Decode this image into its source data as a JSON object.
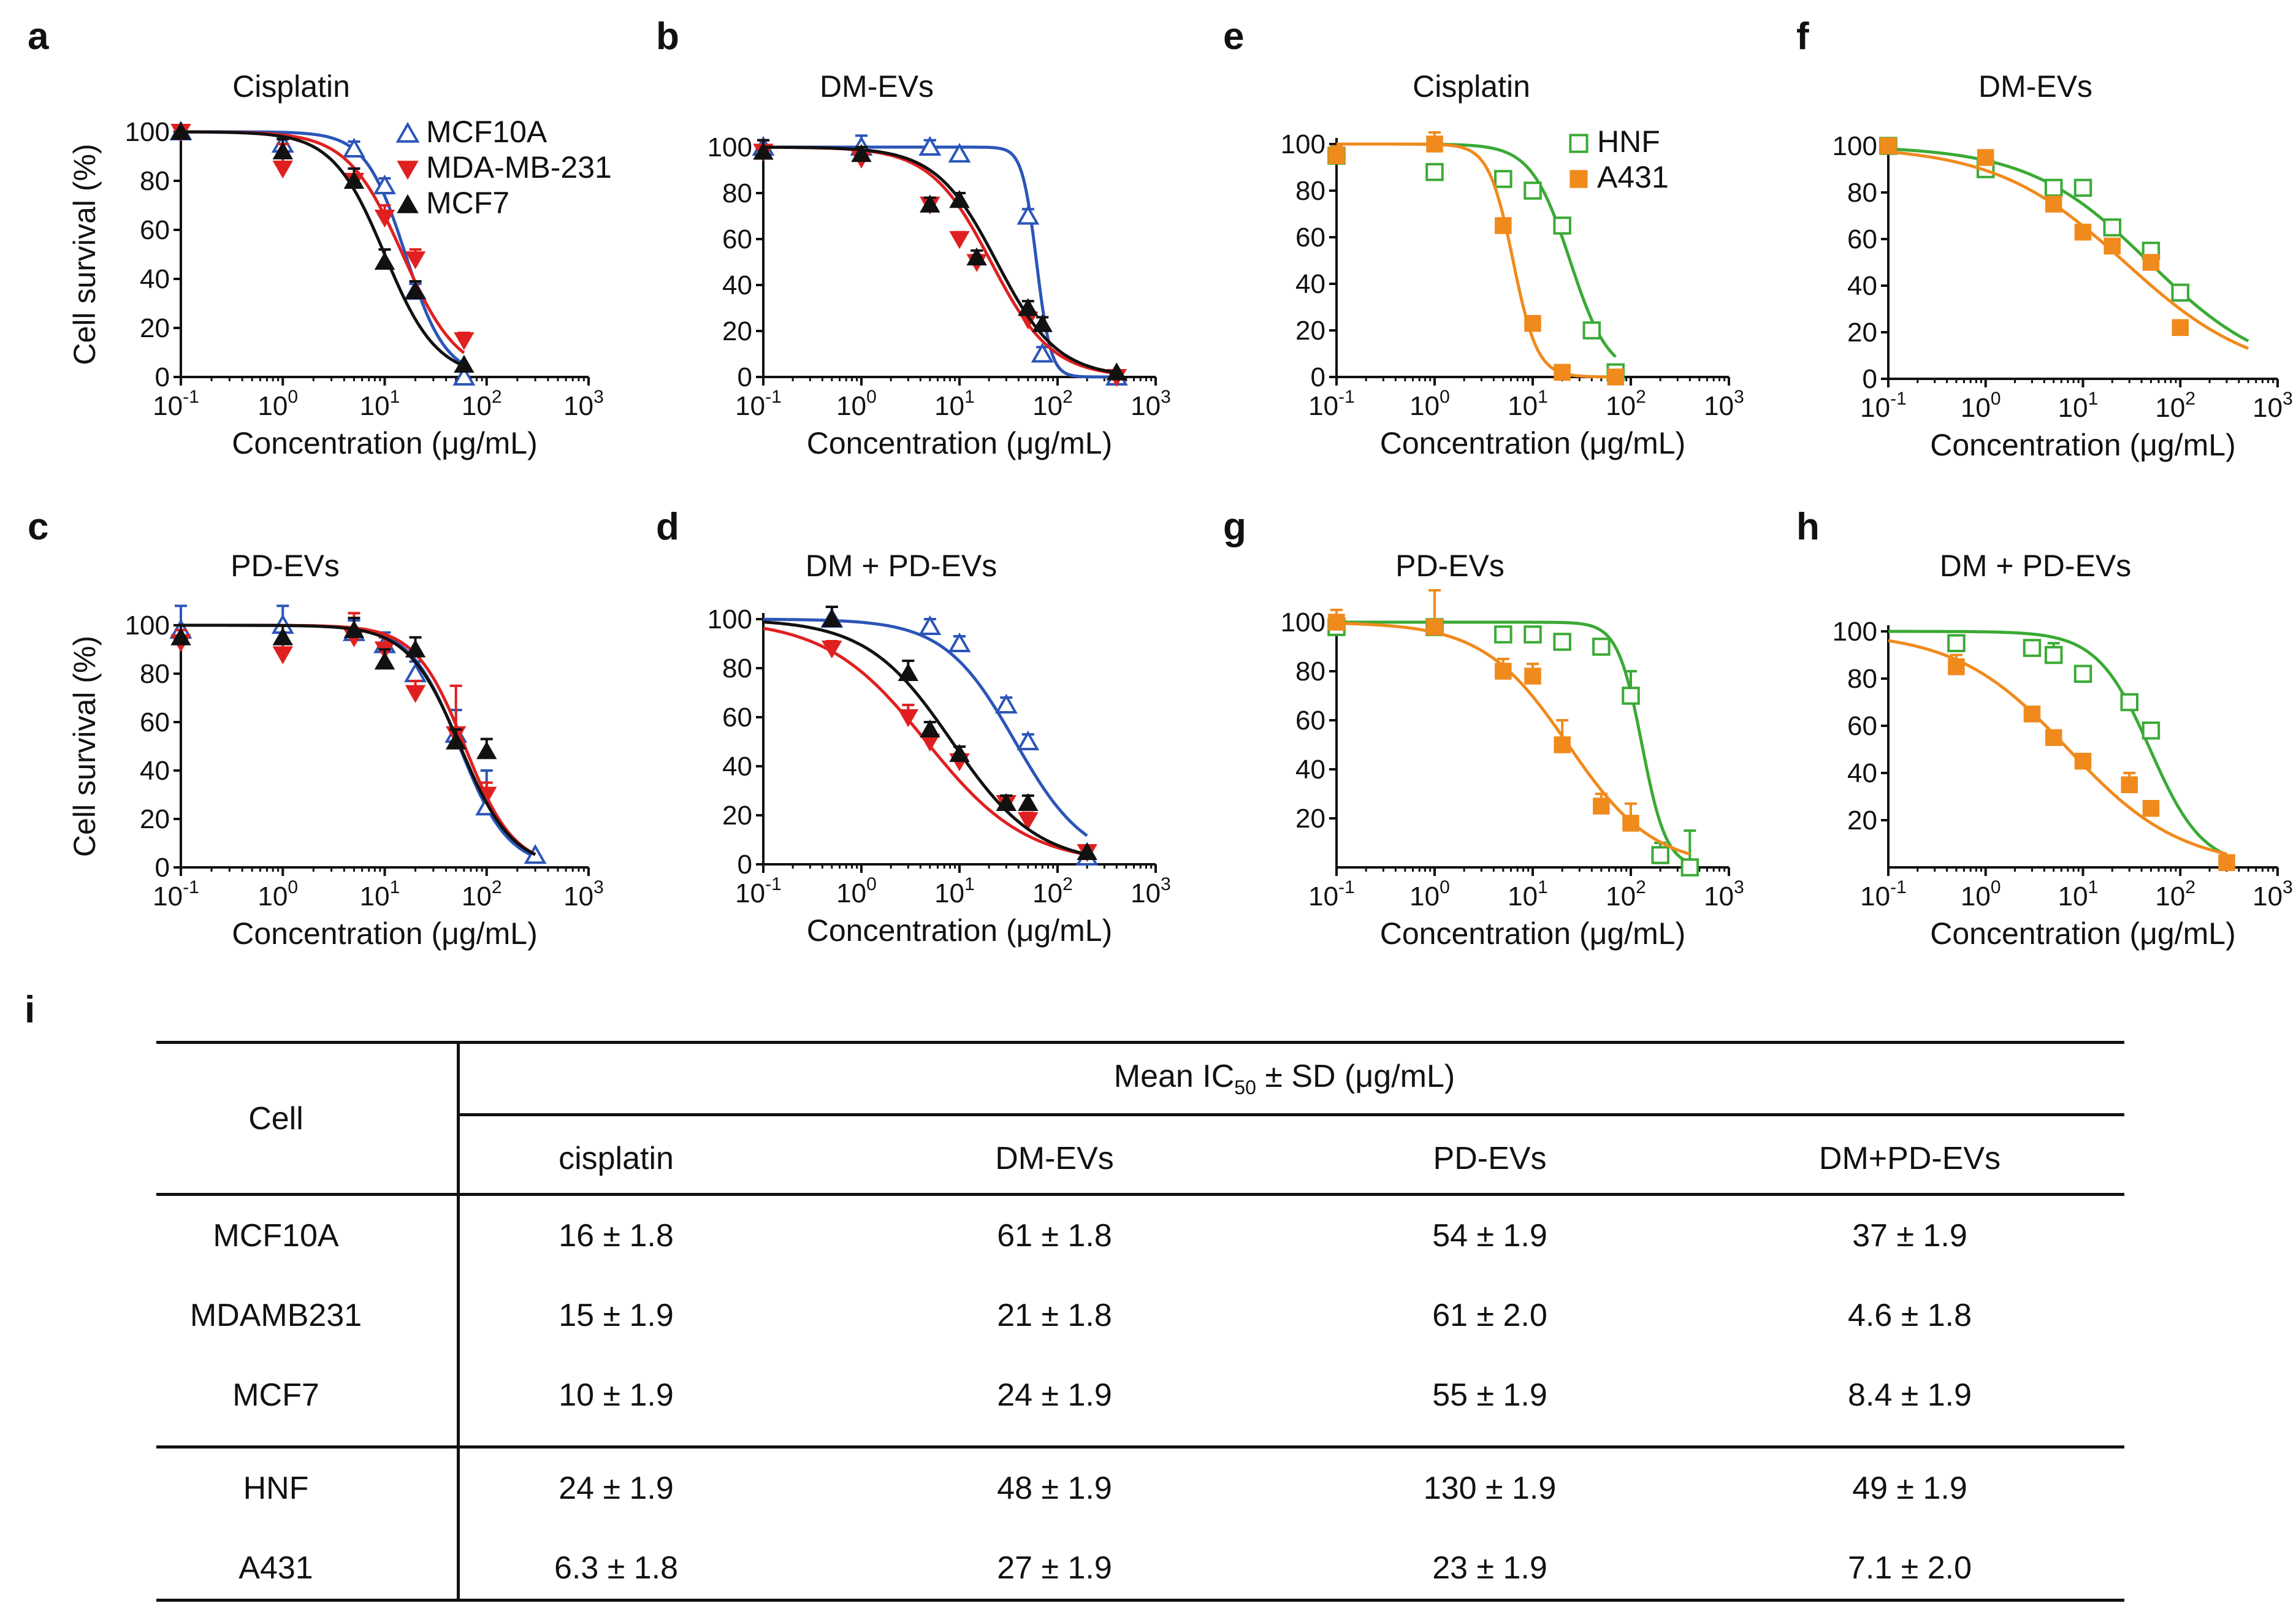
{
  "panel_labels": [
    "a",
    "b",
    "c",
    "d",
    "e",
    "f",
    "g",
    "h",
    "i"
  ],
  "axis_common": {
    "xlabel": "Concentration (μg/mL)",
    "ylabel": "Cell survival (%)",
    "x_ticks": [
      {
        "base": "10",
        "exp": "-1"
      },
      {
        "base": "10",
        "exp": "0"
      },
      {
        "base": "10",
        "exp": "1"
      },
      {
        "base": "10",
        "exp": "2"
      },
      {
        "base": "10",
        "exp": "3"
      }
    ]
  },
  "colors": {
    "MCF10A": "#2b55b8",
    "MDA-MB-231": "#e02020",
    "MCF7": "#111111",
    "HNF": "#3aaa35",
    "A431": "#f08a1c"
  },
  "chart_data": [
    {
      "id": "a",
      "type": "line",
      "title": "Cisplatin",
      "xlabel": "Concentration (μg/mL)",
      "ylabel": "Cell survival (%)",
      "xscale": "log",
      "xlim": [
        0.1,
        1000
      ],
      "ylim": [
        0,
        100
      ],
      "yticks": [
        0,
        20,
        40,
        60,
        80,
        100
      ],
      "legend": [
        "MCF10A",
        "MDA-MB-231",
        "MCF7"
      ],
      "series": [
        {
          "name": "MCF10A",
          "marker": "triangle-open",
          "ic50": 16,
          "hill": 2.2,
          "fit_range": [
            0.1,
            60
          ],
          "x": [
            0.1,
            1,
            5,
            10,
            20,
            60
          ],
          "y": [
            100,
            95,
            93,
            78,
            35,
            0
          ],
          "err": [
            0,
            3,
            3,
            3,
            3,
            0
          ]
        },
        {
          "name": "MDA-MB-231",
          "marker": "triangle-down",
          "ic50": 15,
          "hill": 1.6,
          "fit_range": [
            0.1,
            60
          ],
          "x": [
            0.1,
            1,
            5,
            10,
            20,
            60
          ],
          "y": [
            100,
            85,
            80,
            65,
            48,
            15
          ],
          "err": [
            0,
            10,
            5,
            5,
            4,
            3
          ]
        },
        {
          "name": "MCF7",
          "marker": "triangle",
          "ic50": 10,
          "hill": 1.7,
          "fit_range": [
            0.1,
            60
          ],
          "x": [
            0.1,
            1,
            5,
            10,
            20,
            60
          ],
          "y": [
            100,
            92,
            80,
            47,
            35,
            5
          ],
          "err": [
            0,
            5,
            5,
            5,
            4,
            0
          ]
        }
      ]
    },
    {
      "id": "b",
      "type": "line",
      "title": "DM-EVs",
      "xlabel": "Concentration (μg/mL)",
      "ylabel": "",
      "xscale": "log",
      "xlim": [
        0.1,
        1000
      ],
      "ylim": [
        0,
        100
      ],
      "yticks": [
        0,
        20,
        40,
        60,
        80,
        100
      ],
      "series": [
        {
          "name": "MCF10A",
          "marker": "triangle-open",
          "ic50": 61,
          "hill": 6,
          "fit_range": [
            0.1,
            400
          ],
          "x": [
            0.1,
            1,
            5,
            10,
            50,
            70,
            400
          ],
          "y": [
            100,
            100,
            100,
            97,
            70,
            10,
            0
          ],
          "err": [
            0,
            5,
            3,
            3,
            3,
            3,
            0
          ]
        },
        {
          "name": "MDA-MB-231",
          "marker": "triangle-down",
          "ic50": 21,
          "hill": 1.4,
          "fit_range": [
            0.1,
            400
          ],
          "x": [
            0.1,
            1,
            5,
            10,
            15,
            50,
            400
          ],
          "y": [
            98,
            95,
            75,
            60,
            50,
            25,
            0
          ],
          "err": [
            5,
            3,
            3,
            3,
            3,
            3,
            0
          ]
        },
        {
          "name": "MCF7",
          "marker": "triangle",
          "ic50": 24,
          "hill": 1.4,
          "fit_range": [
            0.1,
            400
          ],
          "x": [
            0.1,
            1,
            5,
            10,
            15,
            50,
            70,
            400
          ],
          "y": [
            98,
            97,
            75,
            77,
            52,
            30,
            23,
            2
          ],
          "err": [
            5,
            3,
            3,
            3,
            3,
            3,
            3,
            0
          ]
        }
      ]
    },
    {
      "id": "c",
      "type": "line",
      "title": "PD-EVs",
      "xlabel": "Concentration (μg/mL)",
      "ylabel": "Cell survival (%)",
      "xscale": "log",
      "xlim": [
        0.1,
        1000
      ],
      "ylim": [
        0,
        100
      ],
      "yticks": [
        0,
        20,
        40,
        60,
        80,
        100
      ],
      "series": [
        {
          "name": "MCF10A",
          "marker": "triangle-open",
          "ic50": 54,
          "hill": 1.8,
          "fit_range": [
            0.1,
            300
          ],
          "x": [
            0.1,
            1,
            5,
            10,
            20,
            50,
            100,
            300
          ],
          "y": [
            98,
            100,
            97,
            92,
            80,
            55,
            25,
            5
          ],
          "err": [
            10,
            8,
            5,
            5,
            5,
            10,
            15,
            0
          ]
        },
        {
          "name": "MDA-MB-231",
          "marker": "triangle-down",
          "ic50": 61,
          "hill": 1.8,
          "fit_range": [
            0.1,
            300
          ],
          "x": [
            0.1,
            1,
            5,
            10,
            20,
            50,
            100
          ],
          "y": [
            93,
            88,
            95,
            90,
            72,
            55,
            30
          ],
          "err": [
            5,
            5,
            10,
            5,
            5,
            20,
            5
          ]
        },
        {
          "name": "MCF7",
          "marker": "triangle",
          "ic50": 55,
          "hill": 1.7,
          "fit_range": [
            0.1,
            300
          ],
          "x": [
            0.1,
            1,
            5,
            10,
            20,
            50,
            100
          ],
          "y": [
            95,
            95,
            98,
            85,
            90,
            52,
            48
          ],
          "err": [
            5,
            5,
            5,
            5,
            5,
            5,
            5
          ]
        }
      ]
    },
    {
      "id": "d",
      "type": "line",
      "title": "DM + PD-EVs",
      "xlabel": "Concentration (μg/mL)",
      "ylabel": "",
      "xscale": "log",
      "xlim": [
        0.1,
        1000
      ],
      "ylim": [
        0,
        100
      ],
      "yticks": [
        0,
        20,
        40,
        60,
        80,
        100
      ],
      "series": [
        {
          "name": "MCF10A",
          "marker": "triangle-open",
          "ic50": 37,
          "hill": 1.2,
          "fit_range": [
            0.1,
            200
          ],
          "x": [
            0.5,
            5,
            10,
            30,
            50,
            200
          ],
          "y": [
            100,
            97,
            90,
            65,
            50,
            3
          ],
          "err": [
            5,
            3,
            3,
            3,
            3,
            0
          ]
        },
        {
          "name": "MDA-MB-231",
          "marker": "triangle-down",
          "ic50": 4.6,
          "hill": 0.85,
          "fit_range": [
            0.1,
            200
          ],
          "x": [
            0.5,
            3,
            5,
            10,
            30,
            50,
            200
          ],
          "y": [
            88,
            60,
            50,
            42,
            25,
            18,
            5
          ],
          "err": [
            3,
            5,
            3,
            3,
            3,
            3,
            0
          ]
        },
        {
          "name": "MCF7",
          "marker": "triangle",
          "ic50": 8.4,
          "hill": 1.0,
          "fit_range": [
            0.1,
            200
          ],
          "x": [
            0.5,
            3,
            5,
            10,
            30,
            50,
            200
          ],
          "y": [
            100,
            78,
            55,
            45,
            25,
            25,
            5
          ],
          "err": [
            5,
            5,
            3,
            3,
            3,
            3,
            0
          ]
        }
      ]
    },
    {
      "id": "e",
      "type": "line",
      "title": "Cisplatin",
      "xlabel": "Concentration (μg/mL)",
      "ylabel": "",
      "xscale": "log",
      "xlim": [
        0.1,
        1000
      ],
      "ylim": [
        0,
        100
      ],
      "yticks": [
        0,
        20,
        40,
        60,
        80,
        100
      ],
      "legend": [
        "HNF",
        "A431"
      ],
      "series": [
        {
          "name": "HNF",
          "marker": "square-open",
          "ic50": 24,
          "hill": 2.2,
          "fit_range": [
            0.1,
            70
          ],
          "x": [
            0.1,
            1,
            5,
            10,
            20,
            40,
            70
          ],
          "y": [
            95,
            88,
            85,
            80,
            65,
            20,
            2
          ],
          "err": [
            0,
            0,
            3,
            0,
            0,
            0,
            0
          ]
        },
        {
          "name": "A431",
          "marker": "square",
          "ic50": 6.3,
          "hill": 3.5,
          "fit_range": [
            0.1,
            70
          ],
          "x": [
            0.1,
            1,
            5,
            10,
            20,
            70
          ],
          "y": [
            95,
            100,
            65,
            23,
            2,
            0
          ],
          "err": [
            4,
            5,
            3,
            0,
            0,
            0
          ]
        }
      ]
    },
    {
      "id": "f",
      "type": "line",
      "title": "DM-EVs",
      "xlabel": "Concentration (μg/mL)",
      "ylabel": "",
      "xscale": "log",
      "xlim": [
        0.1,
        1000
      ],
      "ylim": [
        0,
        100
      ],
      "yticks": [
        0,
        20,
        40,
        60,
        80,
        100
      ],
      "series": [
        {
          "name": "HNF",
          "marker": "square-open",
          "ic50": 48,
          "hill": 0.7,
          "fit_range": [
            0.1,
            500
          ],
          "x": [
            0.1,
            1,
            5,
            10,
            20,
            50,
            100
          ],
          "y": [
            100,
            90,
            82,
            82,
            65,
            55,
            37
          ],
          "err": [
            0,
            0,
            0,
            0,
            0,
            0,
            0
          ]
        },
        {
          "name": "A431",
          "marker": "square",
          "ic50": 27,
          "hill": 0.65,
          "fit_range": [
            0.1,
            500
          ],
          "x": [
            0.1,
            1,
            5,
            10,
            20,
            50,
            100
          ],
          "y": [
            100,
            95,
            75,
            63,
            57,
            50,
            22
          ],
          "err": [
            0,
            0,
            0,
            0,
            0,
            0,
            0
          ]
        }
      ]
    },
    {
      "id": "g",
      "type": "line",
      "title": "PD-EVs",
      "xlabel": "Concentration (μg/mL)",
      "ylabel": "",
      "xscale": "log",
      "xlim": [
        0.1,
        1000
      ],
      "ylim": [
        0,
        100
      ],
      "yticks": [
        20,
        40,
        60,
        80,
        100
      ],
      "series": [
        {
          "name": "HNF",
          "marker": "square-open",
          "ic50": 130,
          "hill": 3.5,
          "fit_range": [
            0.1,
            400
          ],
          "x": [
            0.1,
            1,
            5,
            10,
            20,
            50,
            100,
            200,
            400
          ],
          "y": [
            98,
            98,
            95,
            95,
            92,
            90,
            70,
            5,
            0
          ],
          "err": [
            3,
            3,
            3,
            3,
            3,
            3,
            10,
            5,
            15
          ]
        },
        {
          "name": "A431",
          "marker": "square",
          "ic50": 23,
          "hill": 1.0,
          "fit_range": [
            0.1,
            400
          ],
          "x": [
            0.1,
            1,
            5,
            10,
            20,
            50,
            100
          ],
          "y": [
            100,
            98,
            80,
            78,
            50,
            25,
            18
          ],
          "err": [
            5,
            15,
            5,
            5,
            10,
            5,
            8
          ]
        }
      ]
    },
    {
      "id": "h",
      "type": "line",
      "title": "DM + PD-EVs",
      "xlabel": "Concentration (μg/mL)",
      "ylabel": "",
      "xscale": "log",
      "xlim": [
        0.1,
        1000
      ],
      "ylim": [
        0,
        100
      ],
      "yticks": [
        20,
        40,
        60,
        80,
        100
      ],
      "series": [
        {
          "name": "HNF",
          "marker": "square-open",
          "ic50": 49,
          "hill": 1.6,
          "fit_range": [
            0.1,
            300
          ],
          "x": [
            0.5,
            3,
            5,
            10,
            30,
            50
          ],
          "y": [
            95,
            93,
            90,
            82,
            70,
            58
          ],
          "err": [
            3,
            3,
            5,
            3,
            3,
            3
          ]
        },
        {
          "name": "A431",
          "marker": "square",
          "ic50": 7.1,
          "hill": 0.75,
          "fit_range": [
            0.1,
            300
          ],
          "x": [
            0.5,
            3,
            5,
            10,
            30,
            50,
            300
          ],
          "y": [
            85,
            65,
            55,
            45,
            35,
            25,
            2
          ],
          "err": [
            5,
            3,
            3,
            3,
            5,
            3,
            0
          ]
        }
      ]
    },
    {
      "id": "i",
      "type": "table",
      "title": "Mean IC50 ± SD (μg/mL)",
      "columns": [
        "Cell",
        "cisplatin",
        "DM-EVs",
        "PD-EVs",
        "DM+PD-EVs"
      ],
      "rows": [
        [
          "MCF10A",
          "16 ± 1.8",
          "61 ± 1.8",
          "54 ± 1.9",
          "37 ± 1.9"
        ],
        [
          "MDAMB231",
          "15 ± 1.9",
          "21 ± 1.8",
          "61 ± 2.0",
          "4.6 ± 1.8"
        ],
        [
          "MCF7",
          "10 ± 1.9",
          "24 ± 1.9",
          "55 ± 1.9",
          "8.4 ± 1.9"
        ],
        [
          "HNF",
          "24 ± 1.9",
          "48 ± 1.9",
          "130 ± 1.9",
          "49 ± 1.9"
        ],
        [
          "A431",
          "6.3 ± 1.8",
          "27 ± 1.9",
          "23 ± 1.9",
          "7.1 ± 2.0"
        ]
      ]
    }
  ],
  "table": {
    "header_main": "Mean IC",
    "header_sub": "50",
    "header_rest": " ± SD (μg/mL)",
    "cell_header": "Cell",
    "col_headers": [
      "cisplatin",
      "DM-EVs",
      "PD-EVs",
      "DM+PD-EVs"
    ],
    "rows": [
      {
        "cell": "MCF10A",
        "values": [
          "16 ± 1.8",
          "61 ± 1.8",
          "54 ± 1.9",
          "37 ± 1.9"
        ]
      },
      {
        "cell": "MDAMB231",
        "values": [
          "15 ± 1.9",
          "21 ± 1.8",
          "61 ± 2.0",
          "4.6 ± 1.8"
        ]
      },
      {
        "cell": "MCF7",
        "values": [
          "10 ± 1.9",
          "24 ± 1.9",
          "55 ± 1.9",
          "8.4 ± 1.9"
        ]
      },
      {
        "cell": "HNF",
        "values": [
          "24 ± 1.9",
          "48 ± 1.9",
          "130 ± 1.9",
          "49 ± 1.9"
        ]
      },
      {
        "cell": "A431",
        "values": [
          "6.3 ± 1.8",
          "27 ± 1.9",
          "23 ± 1.9",
          "7.1 ± 2.0"
        ]
      }
    ]
  }
}
